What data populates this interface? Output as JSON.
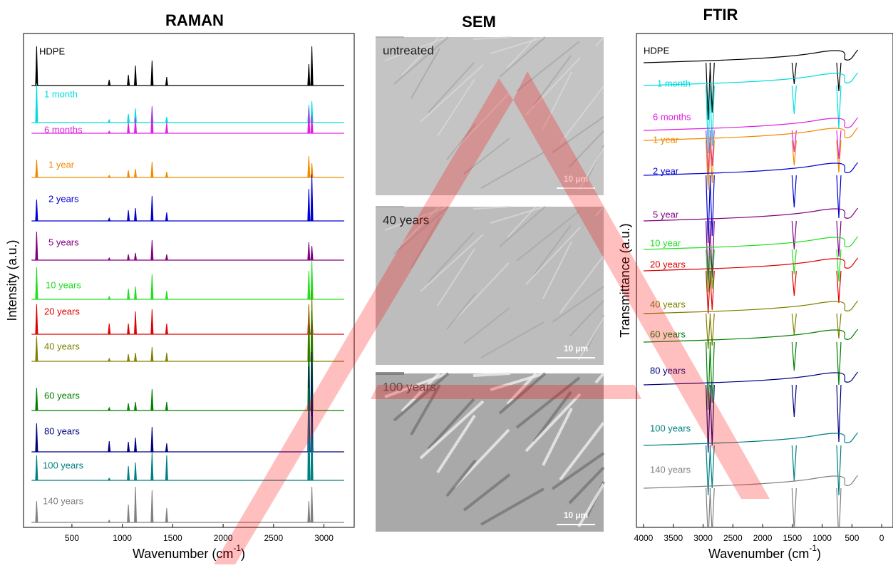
{
  "chart_data": [
    {
      "type": "spectrum",
      "title": "RAMAN",
      "y_label": "Intensity (a.u.)",
      "x_label": "Wavenumber (cm",
      "x_label_sup": "-1",
      "x_label_end": ")",
      "xlim": [
        20,
        3300
      ],
      "xticks": [
        500,
        1000,
        1500,
        2000,
        2500,
        3000
      ],
      "x": [
        150,
        870,
        1060,
        1130,
        1295,
        1440,
        2850,
        2880
      ],
      "series": [
        {
          "name": "HDPE",
          "color": "#000000",
          "values": [
            55,
            8,
            15,
            28,
            35,
            12,
            30,
            55
          ]
        },
        {
          "name": "1 month",
          "color": "#00dede",
          "values": [
            55,
            4,
            12,
            20,
            22,
            8,
            25,
            30
          ]
        },
        {
          "name": "6 months",
          "color": "#e020e0",
          "values": [
            0,
            3,
            15,
            22,
            38,
            15,
            35,
            25
          ]
        },
        {
          "name": "1 year",
          "color": "#f08a00",
          "values": [
            25,
            3,
            10,
            12,
            22,
            8,
            30,
            20
          ]
        },
        {
          "name": "2 years",
          "color": "#0000d0",
          "values": [
            30,
            4,
            15,
            18,
            35,
            12,
            45,
            65
          ]
        },
        {
          "name": "5 years",
          "color": "#800080",
          "values": [
            40,
            3,
            8,
            10,
            28,
            8,
            25,
            20
          ]
        },
        {
          "name": "10 years",
          "color": "#20e020",
          "values": [
            45,
            4,
            15,
            18,
            35,
            12,
            40,
            55
          ]
        },
        {
          "name": "20 years",
          "color": "#e00000",
          "values": [
            42,
            15,
            15,
            32,
            35,
            15,
            40,
            30
          ]
        },
        {
          "name": "40 years",
          "color": "#808000",
          "values": [
            35,
            4,
            10,
            12,
            20,
            12,
            80,
            100
          ]
        },
        {
          "name": "60 years",
          "color": "#008000",
          "values": [
            32,
            4,
            10,
            12,
            30,
            12,
            120,
            140
          ]
        },
        {
          "name": "80 years",
          "color": "#000080",
          "values": [
            40,
            15,
            14,
            20,
            35,
            12,
            120,
            140
          ]
        },
        {
          "name": "100 years",
          "color": "#008080",
          "values": [
            35,
            3,
            20,
            25,
            40,
            35,
            130,
            90
          ]
        },
        {
          "name": "140 years",
          "color": "#808080",
          "values": [
            30,
            3,
            25,
            50,
            45,
            20,
            30,
            50
          ]
        }
      ]
    },
    {
      "type": "spectrum-dip",
      "title": "FTIR",
      "y_label": "Transmittance (a.u.)",
      "x_label": "Wavenumber (cm",
      "x_label_sup": "-1",
      "x_label_end": ")",
      "xlim": [
        4120,
        -190
      ],
      "xticks": [
        4000,
        3500,
        3000,
        2500,
        2000,
        1500,
        1000,
        500,
        0
      ],
      "x": [
        2915,
        2848,
        1470,
        720
      ],
      "series": [
        {
          "name": "HDPE",
          "color": "#000000",
          "values": [
            80,
            70,
            30,
            40
          ]
        },
        {
          "name": "1 month",
          "color": "#00dede",
          "values": [
            95,
            85,
            40,
            60
          ]
        },
        {
          "name": "6 months",
          "color": "#e020e0",
          "values": [
            60,
            50,
            30,
            40
          ]
        },
        {
          "name": "1 year",
          "color": "#f08a00",
          "values": [
            70,
            60,
            35,
            45
          ]
        },
        {
          "name": "2 year",
          "color": "#0000d0",
          "values": [
            95,
            85,
            45,
            60
          ]
        },
        {
          "name": "5 year",
          "color": "#800080",
          "values": [
            90,
            80,
            40,
            50
          ]
        },
        {
          "name": "10 year",
          "color": "#20e020",
          "values": [
            60,
            55,
            35,
            45
          ]
        },
        {
          "name": "20 years",
          "color": "#e00000",
          "values": [
            60,
            55,
            35,
            45
          ]
        },
        {
          "name": "40 years",
          "color": "#808000",
          "values": [
            50,
            45,
            30,
            35
          ]
        },
        {
          "name": "60 years",
          "color": "#008000",
          "values": [
            95,
            85,
            40,
            60
          ]
        },
        {
          "name": "80 years",
          "color": "#000080",
          "values": [
            95,
            85,
            45,
            80
          ]
        },
        {
          "name": "100 years",
          "color": "#008080",
          "values": [
            70,
            60,
            50,
            70
          ]
        },
        {
          "name": "140 years",
          "color": "#808080",
          "values": [
            75,
            65,
            60,
            75
          ]
        }
      ]
    }
  ],
  "sem": {
    "title": "SEM",
    "panels": [
      {
        "label": "untreated",
        "scale": "10 µm"
      },
      {
        "label": "40 years",
        "scale": "10 µm"
      },
      {
        "label": "100 years",
        "scale": "10 µm"
      }
    ]
  }
}
